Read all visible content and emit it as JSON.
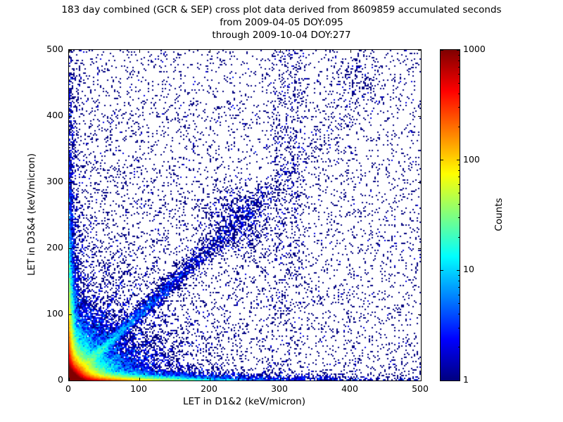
{
  "title": {
    "line1": "183 day combined (GCR & SEP) cross plot data derived from 8609859 accumulated seconds",
    "line2": "from 2009-04-05 DOY:095",
    "line3": "through 2009-10-04 DOY:277"
  },
  "chart_data": {
    "type": "heatmap",
    "title": "183 day combined (GCR & SEP) cross plot data derived from 8609859 accumulated seconds",
    "subtitle": [
      "from 2009-04-05 DOY:095",
      "through 2009-10-04 DOY:277"
    ],
    "accumulated_seconds": 8609859,
    "date_start": "2009-04-05",
    "doy_start": "095",
    "date_end": "2009-10-04",
    "doy_end": "277",
    "xlabel": "LET in D1&2 (keV/micron)",
    "ylabel": "LET in D3&4 (keV/micron)",
    "xlim": [
      0,
      500
    ],
    "ylim": [
      0,
      500
    ],
    "x_ticks": [
      0,
      100,
      200,
      300,
      400,
      500
    ],
    "y_ticks": [
      0,
      100,
      200,
      300,
      400,
      500
    ],
    "grid": false,
    "colorbar": {
      "label": "Counts",
      "scale": "log",
      "min": 1,
      "max": 1000,
      "major_ticks": [
        1,
        10,
        100,
        1000
      ],
      "colormap": "jet"
    },
    "point_color_single": "#00007f",
    "features": [
      "very dense hot core at the origin reaching ~1000 counts (dark red), jet colormap on log scale",
      "bright enhancement bands hugging both axes (yellow/green fading to blue within ~100 keV/micron)",
      "diagonal correlation band y = x extending past 300 keV/micron with a blue cluster near (240,240)",
      "several faint rays fanning out from the origin at slopes between ~0.3 and ~3",
      "weak vertical striations near x = 300-325 at high y",
      "sparse single-count (dark blue) background points over the whole 0-500 range"
    ],
    "render_seed": 20090405,
    "layers": [
      {
        "kind": "exp2d",
        "n": 120000,
        "sx": 8,
        "sy": 8
      },
      {
        "kind": "exp2d",
        "n": 30000,
        "sx": 26,
        "sy": 26
      },
      {
        "kind": "exp2d",
        "n": 30000,
        "sx": 45,
        "sy": 3
      },
      {
        "kind": "exp2d",
        "n": 24000,
        "sx": 3,
        "sy": 45
      },
      {
        "kind": "exp2d",
        "n": 3000,
        "sx": 160,
        "sy": 5
      },
      {
        "kind": "exp2d",
        "n": 2600,
        "sx": 5,
        "sy": 160
      },
      {
        "kind": "exp2d",
        "n": 2600,
        "sx": 150,
        "sy": 150
      },
      {
        "kind": "diag",
        "n": 5200,
        "scale": 95,
        "sigma0": 2.5,
        "sigma_slope": 0.025
      },
      {
        "kind": "blob",
        "n": 650,
        "cx": 243,
        "cy": 243,
        "sx": 27,
        "sy": 27
      },
      {
        "kind": "blob",
        "n": 130,
        "cx": 405,
        "cy": 455,
        "sx": 16,
        "sy": 20
      },
      {
        "kind": "ray",
        "n": 420,
        "slope": 0.5,
        "scale": 55,
        "sigma": 2
      },
      {
        "kind": "ray",
        "n": 380,
        "slope": 2.0,
        "scale": 28,
        "sigma": 2
      },
      {
        "kind": "ray",
        "n": 300,
        "slope": 0.7,
        "scale": 50,
        "sigma": 2
      },
      {
        "kind": "ray",
        "n": 300,
        "slope": 1.45,
        "scale": 36,
        "sigma": 2
      },
      {
        "kind": "ray",
        "n": 220,
        "slope": 0.33,
        "scale": 62,
        "sigma": 1.5
      },
      {
        "kind": "ray",
        "n": 220,
        "slope": 3.1,
        "scale": 19,
        "sigma": 1.5
      },
      {
        "kind": "vband",
        "n": 300,
        "x": 302,
        "sx": 9,
        "y0": 80,
        "y1": 500
      },
      {
        "kind": "vband",
        "n": 200,
        "x": 323,
        "sx": 7,
        "y0": 140,
        "y1": 500
      },
      {
        "kind": "uniform",
        "n": 5200
      }
    ]
  }
}
